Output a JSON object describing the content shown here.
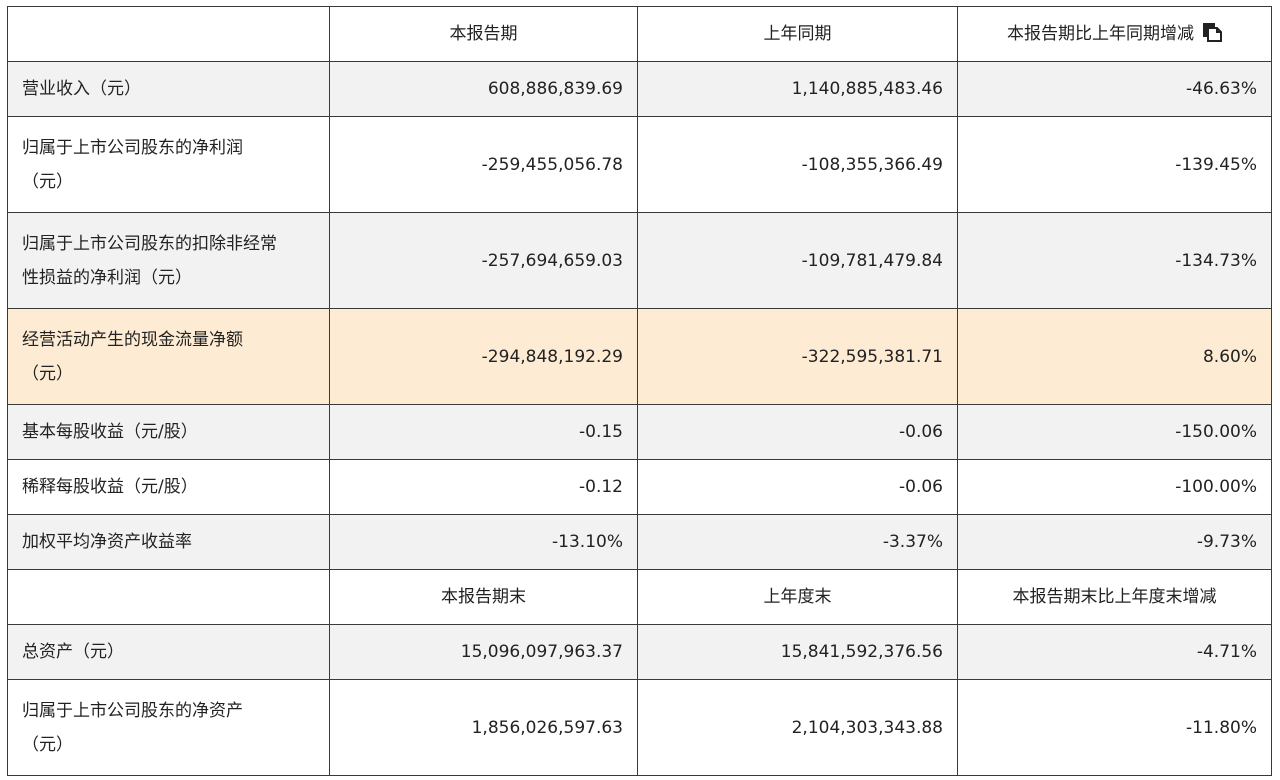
{
  "header1": {
    "col0": "",
    "col1": "本报告期",
    "col2": "上年同期",
    "col3": "本报告期比上年同期增减"
  },
  "copy_icon": "copy-icon",
  "rows1": [
    {
      "label_line1": "营业收入（元）",
      "label_line2": "",
      "current": "608,886,839.69",
      "prior": "1,140,885,483.46",
      "change": "-46.63%"
    },
    {
      "label_line1": "归属于上市公司股东的净利润",
      "label_line2": "（元）",
      "current": "-259,455,056.78",
      "prior": "-108,355,366.49",
      "change": "-139.45%"
    },
    {
      "label_line1": "归属于上市公司股东的扣除非经常",
      "label_line2": "性损益的净利润（元）",
      "current": "-257,694,659.03",
      "prior": "-109,781,479.84",
      "change": "-134.73%"
    },
    {
      "label_line1": "经营活动产生的现金流量净额",
      "label_line2": "（元）",
      "current": "-294,848,192.29",
      "prior": "-322,595,381.71",
      "change": "8.60%"
    },
    {
      "label_line1": "基本每股收益（元/股）",
      "label_line2": "",
      "current": "-0.15",
      "prior": "-0.06",
      "change": "-150.00%"
    },
    {
      "label_line1": "稀释每股收益（元/股）",
      "label_line2": "",
      "current": "-0.12",
      "prior": "-0.06",
      "change": "-100.00%"
    },
    {
      "label_line1": "加权平均净资产收益率",
      "label_line2": "",
      "current": "-13.10%",
      "prior": "-3.37%",
      "change": "-9.73%"
    }
  ],
  "header2": {
    "col0": "",
    "col1": "本报告期末",
    "col2": "上年度末",
    "col3": "本报告期末比上年度末增减"
  },
  "rows2": [
    {
      "label_line1": "总资产（元）",
      "label_line2": "",
      "current": "15,096,097,963.37",
      "prior": "15,841,592,376.56",
      "change": "-4.71%"
    },
    {
      "label_line1": "归属于上市公司股东的净资产",
      "label_line2": "（元）",
      "current": "1,856,026,597.63",
      "prior": "2,104,303,343.88",
      "change": "-11.80%"
    }
  ],
  "colors": {
    "border": "#3a3a3a",
    "stripe": "#f2f2f2",
    "highlight": "#fdebd3"
  }
}
